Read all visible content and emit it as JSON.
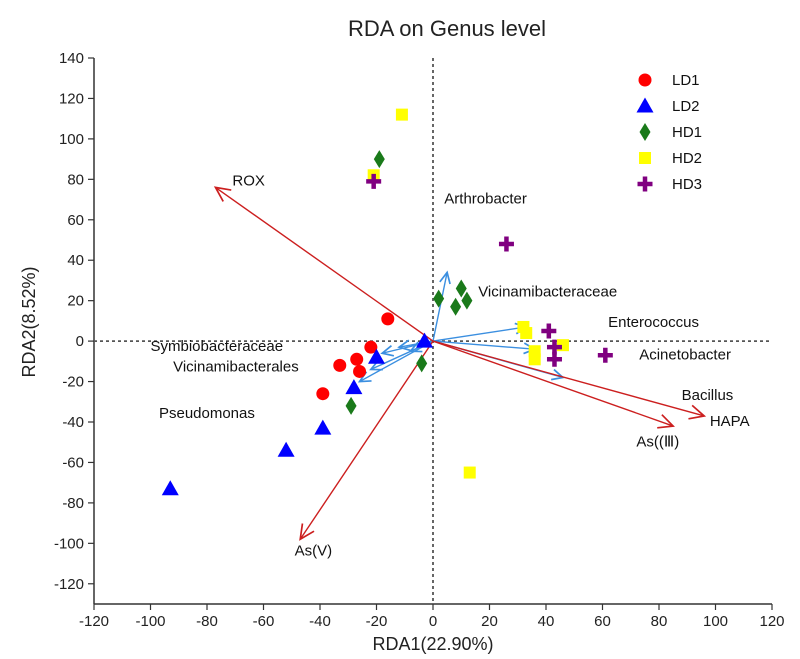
{
  "chart_data": {
    "type": "scatter",
    "title": "RDA on Genus level",
    "xlabel": "RDA1(22.90%)",
    "ylabel": "RDA2(8.52%)",
    "xlim": [
      -120,
      120
    ],
    "ylim": [
      -130,
      140
    ],
    "xticks": [
      -120,
      -100,
      -80,
      -60,
      -40,
      -20,
      0,
      20,
      40,
      60,
      80,
      100,
      120
    ],
    "yticks": [
      -120,
      -100,
      -80,
      -60,
      -40,
      -20,
      0,
      20,
      40,
      60,
      80,
      100,
      120,
      140
    ],
    "grid": false,
    "legend_position": "top-right",
    "series": [
      {
        "name": "LD1",
        "marker": "circle",
        "color": "#ff0000",
        "points": [
          [
            -16,
            11
          ],
          [
            -22,
            -3
          ],
          [
            -27,
            -9
          ],
          [
            -33,
            -12
          ],
          [
            -26,
            -15
          ],
          [
            -39,
            -26
          ]
        ]
      },
      {
        "name": "LD2",
        "marker": "triangle",
        "color": "#0000ff",
        "points": [
          [
            -3,
            0
          ],
          [
            -20,
            -8
          ],
          [
            -28,
            -23
          ],
          [
            -39,
            -43
          ],
          [
            -52,
            -54
          ],
          [
            -93,
            -73
          ]
        ]
      },
      {
        "name": "HD1",
        "marker": "diamond",
        "color": "#1a7a1a",
        "points": [
          [
            -19,
            90
          ],
          [
            10,
            26
          ],
          [
            12,
            20
          ],
          [
            2,
            21
          ],
          [
            8,
            17
          ],
          [
            -4,
            -11
          ],
          [
            -29,
            -32
          ]
        ]
      },
      {
        "name": "HD2",
        "marker": "square",
        "color": "#ffff00",
        "points": [
          [
            -11,
            112
          ],
          [
            -21,
            82
          ],
          [
            32,
            7
          ],
          [
            33,
            4
          ],
          [
            36,
            -5
          ],
          [
            36,
            -9
          ],
          [
            46,
            -2
          ],
          [
            13,
            -65
          ]
        ]
      },
      {
        "name": "HD3",
        "marker": "plus",
        "color": "#800080",
        "points": [
          [
            -21,
            79
          ],
          [
            26,
            48
          ],
          [
            41,
            5
          ],
          [
            43,
            -3
          ],
          [
            43,
            -9
          ],
          [
            61,
            -7
          ]
        ]
      }
    ],
    "environment_vectors": [
      {
        "label": "ROX",
        "end": [
          -77,
          76
        ]
      },
      {
        "label": "As(V)",
        "end": [
          -47,
          -98
        ]
      },
      {
        "label": "HAPA",
        "end": [
          96,
          -37
        ]
      },
      {
        "label": "As((Ⅲ)",
        "end": [
          85,
          -42
        ]
      }
    ],
    "species_vectors": [
      {
        "end": [
          5,
          34
        ]
      },
      {
        "end": [
          33,
          7
        ]
      },
      {
        "end": [
          36,
          -4
        ]
      },
      {
        "end": [
          46,
          -18
        ]
      },
      {
        "end": [
          -8,
          -5
        ]
      },
      {
        "end": [
          -12,
          -3
        ]
      },
      {
        "end": [
          -18,
          -6
        ]
      },
      {
        "end": [
          -22,
          -14
        ]
      },
      {
        "end": [
          -26,
          -20
        ]
      }
    ],
    "annotations": [
      {
        "text": "ROX",
        "x": -71,
        "y": 77
      },
      {
        "text": "Arthrobacter",
        "x": 4,
        "y": 68
      },
      {
        "text": "Vicinamibacteraceae",
        "x": 16,
        "y": 22
      },
      {
        "text": "Enterococcus",
        "x": 62,
        "y": 7
      },
      {
        "text": "Acinetobacter",
        "x": 73,
        "y": -9
      },
      {
        "text": "Bacillus",
        "x": 88,
        "y": -29
      },
      {
        "text": "HAPA",
        "x": 98,
        "y": -42
      },
      {
        "text": "As((Ⅲ)",
        "x": 72,
        "y": -52
      },
      {
        "text": "Symbiobacteraceae",
        "x": -100,
        "y": -5
      },
      {
        "text": "Vicinamibacterales",
        "x": -92,
        "y": -15
      },
      {
        "text": "Pseudomonas",
        "x": -97,
        "y": -38
      },
      {
        "text": "As(V)",
        "x": -49,
        "y": -106
      }
    ],
    "colors": {
      "env_arrow": "#cc1f1f",
      "species_arrow": "#3b8fe0",
      "axis": "#333333",
      "zero_line": "#555555"
    }
  }
}
